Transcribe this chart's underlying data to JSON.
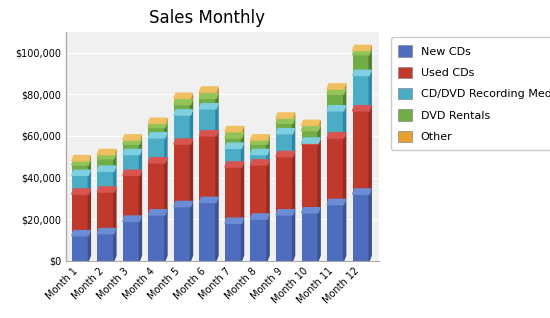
{
  "title": "Sales Monthly",
  "categories": [
    "Month 1",
    "Month 2",
    "Month 3",
    "Month 4",
    "Month 5",
    "Month 6",
    "Month 7",
    "Month 8",
    "Month 9",
    "Month 10",
    "Month 11",
    "Month 12"
  ],
  "series": {
    "New CDs": [
      12000,
      13000,
      19000,
      22000,
      26000,
      28000,
      18000,
      20000,
      22000,
      23000,
      27000,
      32000
    ],
    "Used CDs": [
      20000,
      20000,
      22000,
      25000,
      30000,
      32000,
      27000,
      26000,
      28000,
      33000,
      32000,
      40000
    ],
    "CD/DVD Recording Media": [
      9000,
      10000,
      10000,
      12000,
      14000,
      13000,
      9000,
      5000,
      11000,
      500,
      13000,
      17000
    ],
    "DVD Rentals": [
      5000,
      6000,
      5000,
      5000,
      5000,
      5000,
      5000,
      5000,
      5000,
      6000,
      8000,
      10000
    ],
    "Other": [
      2000,
      2000,
      2000,
      2000,
      3000,
      3000,
      3000,
      2000,
      2500,
      2500,
      2500,
      2000
    ]
  },
  "colors": {
    "New CDs": "#4F6DBE",
    "Used CDs": "#C0392B",
    "CD/DVD Recording Media": "#4BACC6",
    "DVD Rentals": "#70AD47",
    "Other": "#E5A130"
  },
  "shadow_colors": {
    "New CDs": "#3A5290",
    "Used CDs": "#922B21",
    "CD/DVD Recording Media": "#2E86A8",
    "DVD Rentals": "#4E8030",
    "Other": "#B07B20"
  },
  "top_colors": {
    "New CDs": "#6A8DD6",
    "Used CDs": "#D9534F",
    "CD/DVD Recording Media": "#7ECFE0",
    "DVD Rentals": "#92C45A",
    "Other": "#F0C060"
  },
  "ylim": [
    0,
    110000
  ],
  "yticks": [
    0,
    20000,
    40000,
    60000,
    80000,
    100000
  ],
  "ytick_labels": [
    "$0",
    "$20,000",
    "$40,000",
    "$60,000",
    "$80,000",
    "$100,000"
  ],
  "background_color": "#FFFFFF",
  "plot_bg_color": "#F0F0F0",
  "grid_color": "#FFFFFF",
  "title_fontsize": 12,
  "legend_fontsize": 8,
  "tick_fontsize": 7
}
